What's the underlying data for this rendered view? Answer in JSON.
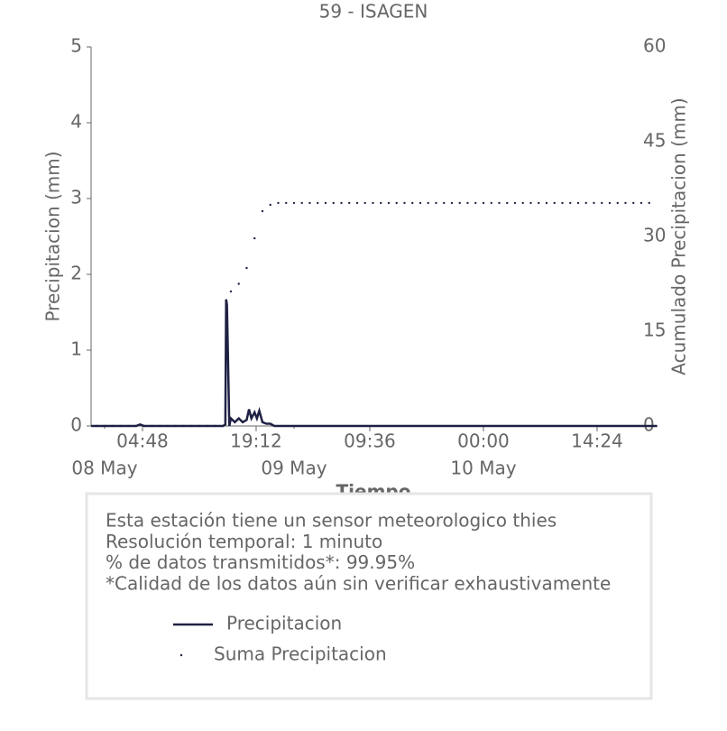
{
  "chart_data": {
    "type": "line",
    "title": "59 - ISAGEN",
    "xlabel": "Tiempo",
    "ylabel": "Precipitacion (mm)",
    "y2label": "Acumulado Precipitacion (mm)",
    "xlim": [
      -1.71,
      70.06
    ],
    "xticks": [
      {
        "value": 4.8,
        "label": "04:48"
      },
      {
        "value": 19.2,
        "label": "19:12"
      },
      {
        "value": 33.6,
        "label": "09:36"
      },
      {
        "value": 48,
        "label": "00:00"
      },
      {
        "value": 62.4,
        "label": "14:24"
      }
    ],
    "xticks_day": [
      {
        "value": 0,
        "label": "08 May"
      },
      {
        "value": 24,
        "label": "09 May"
      },
      {
        "value": 48,
        "label": "10 May"
      }
    ],
    "ylim": [
      0,
      5
    ],
    "yticks": [
      0,
      1,
      2,
      3,
      4,
      5
    ],
    "y2lim": [
      0,
      60
    ],
    "y2ticks": [
      0,
      15,
      30,
      45,
      60
    ],
    "series": [
      {
        "name": "Precipitacion",
        "color": "#1f2143",
        "style": "line",
        "x": [
          -1.7,
          0,
          4,
          4.5,
          5,
          10,
          15,
          15.3,
          15.4,
          15.5,
          15.6,
          15.8,
          16,
          16.5,
          17,
          17.5,
          18,
          18.3,
          18.6,
          19,
          19.3,
          19.6,
          20,
          20.5,
          21,
          21.5,
          70
        ],
        "values": [
          0,
          0,
          0,
          0.02,
          0,
          0,
          0,
          0.02,
          1.67,
          1.6,
          1.1,
          0,
          0.1,
          0.05,
          0.1,
          0.05,
          0.08,
          0.22,
          0.1,
          0.18,
          0.1,
          0.2,
          0.05,
          0.03,
          0.03,
          0,
          0
        ]
      },
      {
        "name": "Suma Precipitacion",
        "color": "#1f2143",
        "style": "dots",
        "axis": "y2",
        "x": [
          -1,
          0,
          1,
          2,
          3,
          4,
          5,
          6,
          7,
          8,
          9,
          10,
          11,
          12,
          13,
          14,
          15,
          16,
          17,
          18,
          19,
          20,
          21,
          22,
          23,
          24,
          25,
          26,
          27,
          28,
          29,
          30,
          31,
          32,
          33,
          34,
          35,
          36,
          37,
          38,
          39,
          40,
          41,
          42,
          43,
          44,
          45,
          46,
          47,
          48,
          49,
          50,
          51,
          52,
          53,
          54,
          55,
          56,
          57,
          58,
          59,
          60,
          61,
          62,
          63,
          64,
          65,
          66,
          67,
          68,
          69
        ],
        "values": [
          0,
          0,
          0,
          0,
          0,
          0,
          0,
          0,
          0,
          0,
          0,
          0,
          0,
          0,
          0,
          0,
          0,
          21.3,
          22.5,
          25,
          29.7,
          34,
          35,
          35.3,
          35.3,
          35.3,
          35.3,
          35.3,
          35.3,
          35.3,
          35.3,
          35.3,
          35.3,
          35.3,
          35.3,
          35.3,
          35.3,
          35.3,
          35.3,
          35.3,
          35.3,
          35.3,
          35.3,
          35.3,
          35.3,
          35.3,
          35.3,
          35.3,
          35.3,
          35.3,
          35.3,
          35.3,
          35.3,
          35.3,
          35.3,
          35.3,
          35.3,
          35.3,
          35.3,
          35.3,
          35.3,
          35.3,
          35.3,
          35.3,
          35.3,
          35.3,
          35.3,
          35.3,
          35.3,
          35.3,
          35.3
        ]
      }
    ],
    "annotations": [
      "Esta estación tiene un sensor meteorologico thies",
      "Resolución temporal: 1 minuto",
      "% de datos transmitidos*: 99.95%",
      "*Calidad de los datos aún sin verificar exhaustivamente"
    ]
  }
}
